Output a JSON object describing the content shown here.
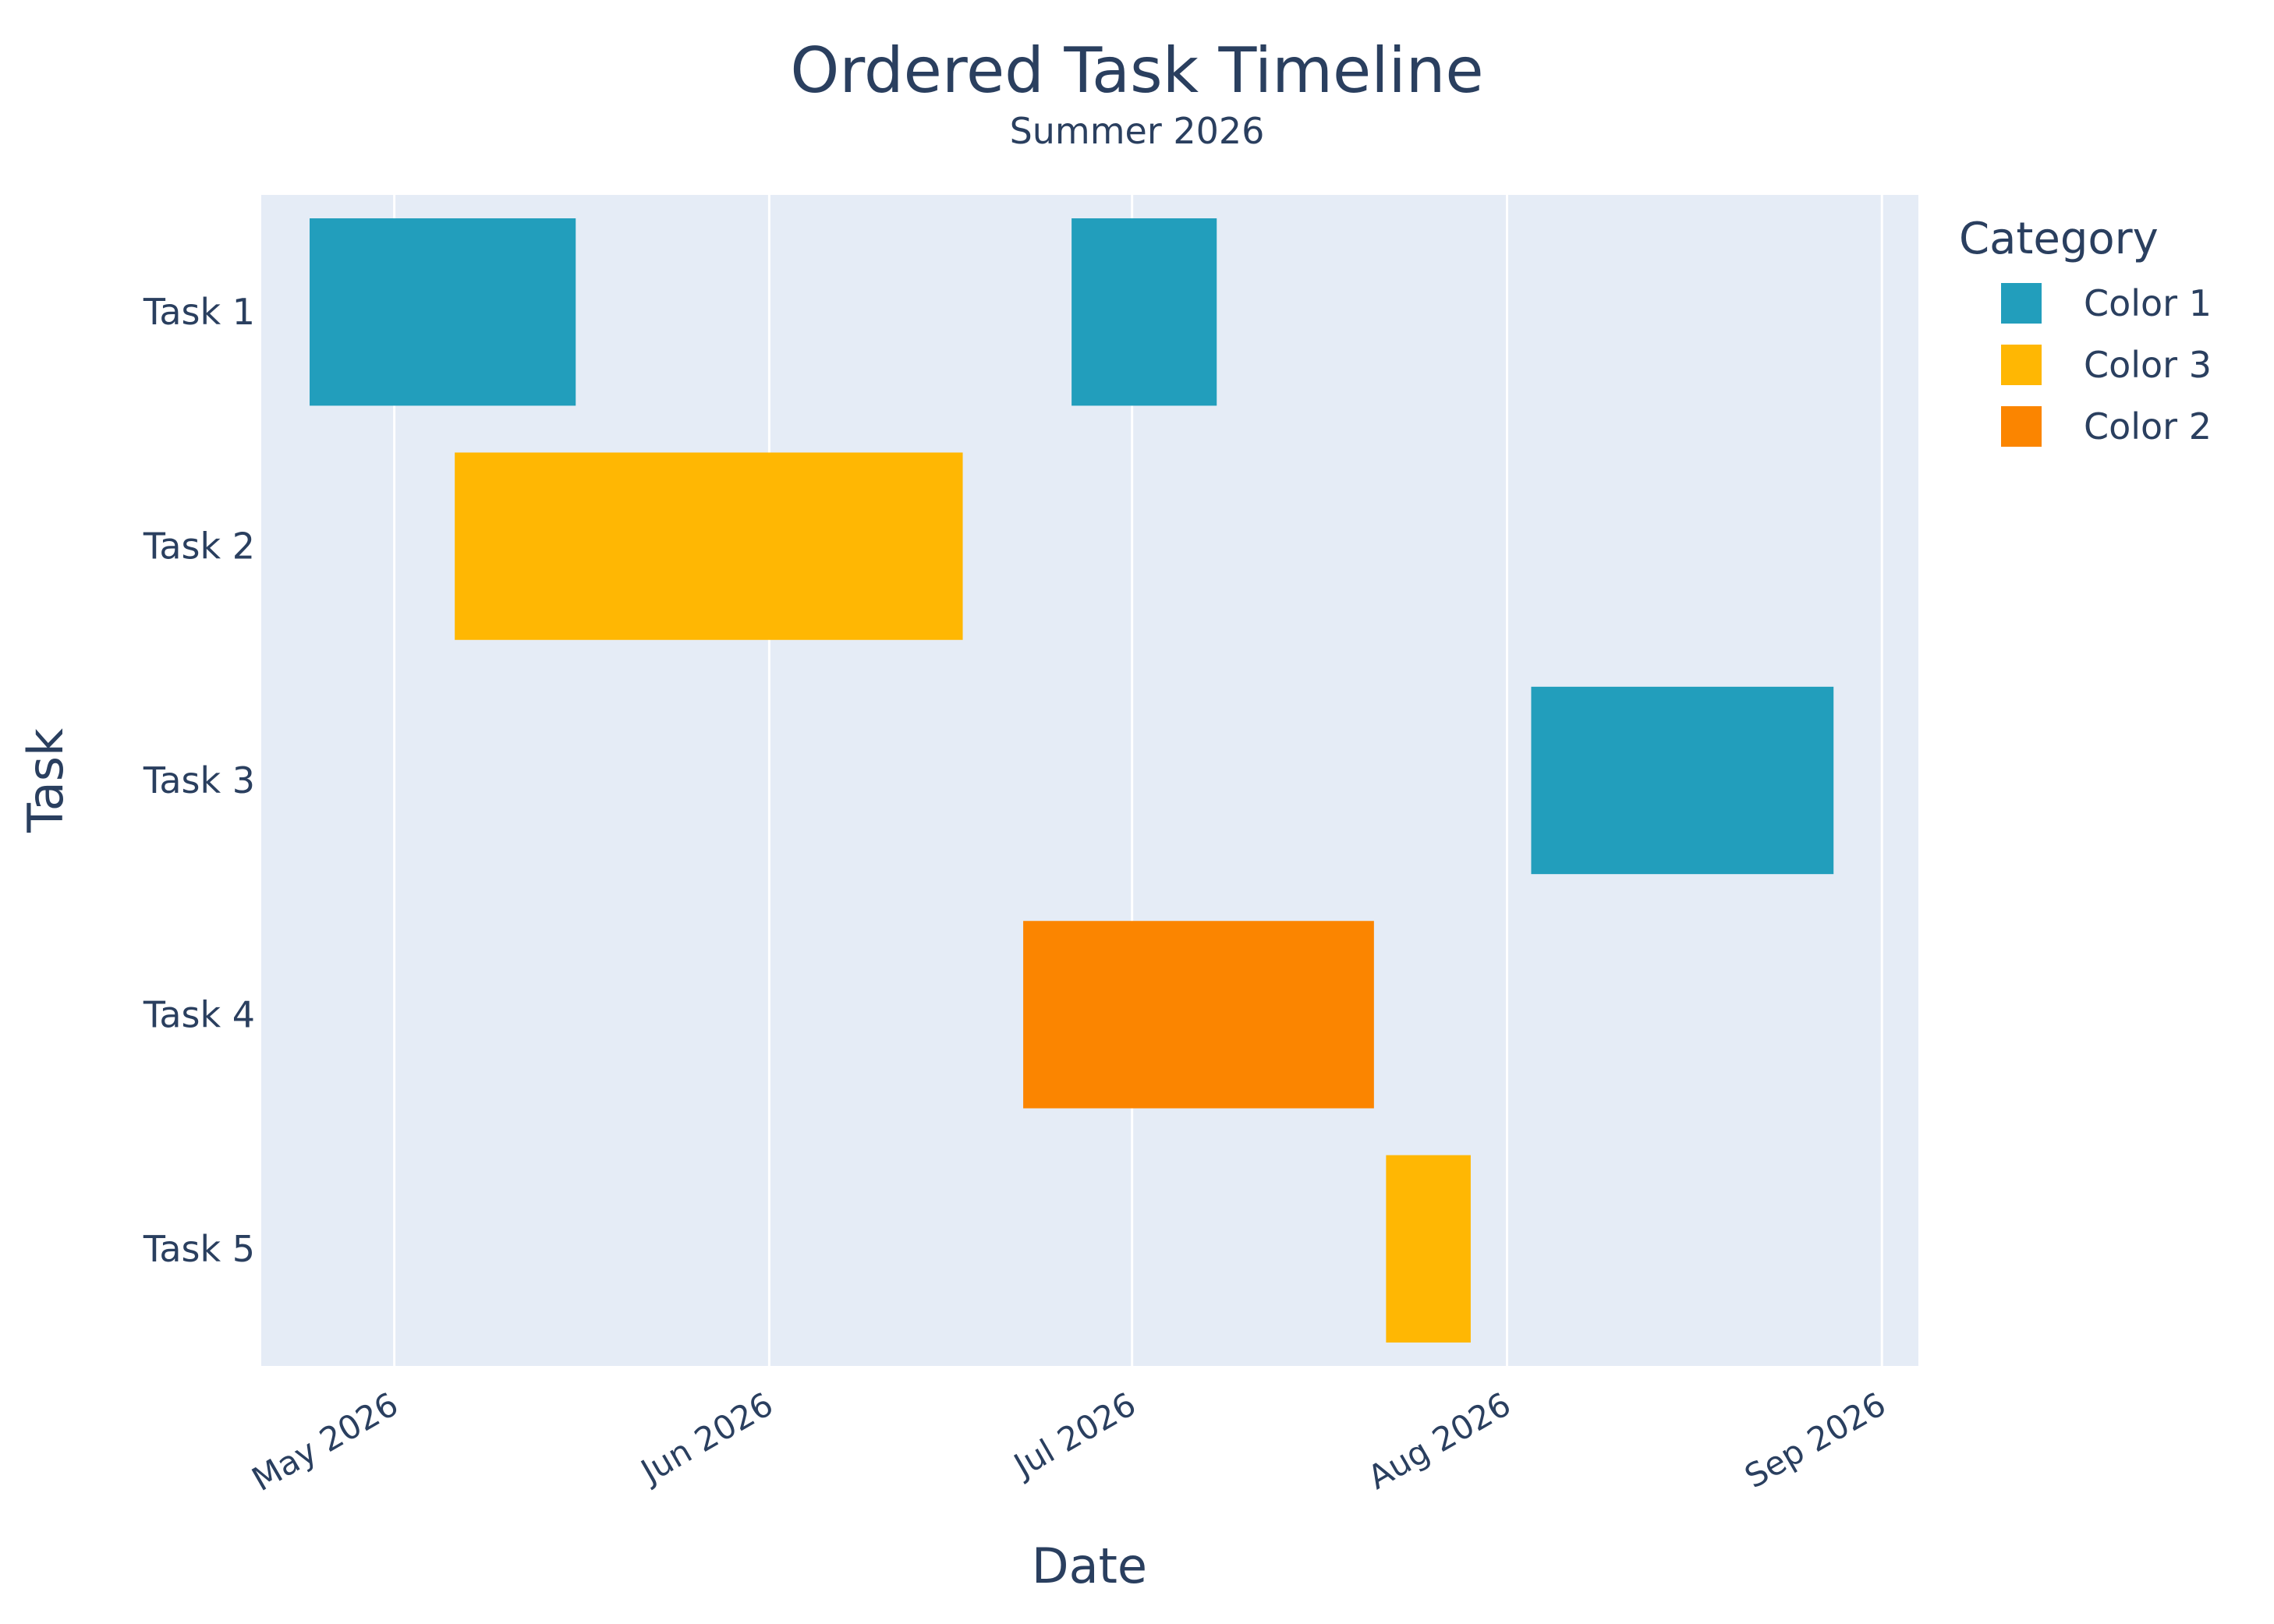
{
  "chart_data": {
    "type": "gantt",
    "title": "Ordered Task Timeline",
    "subtitle": "Summer 2026",
    "xlabel": "Date",
    "ylabel": "Task",
    "x_type": "date",
    "xlim": [
      "2026-04-20",
      "2026-09-01"
    ],
    "x_ticks": [
      "2026-05-01",
      "2026-06-01",
      "2026-07-01",
      "2026-08-01",
      "2026-09-01"
    ],
    "x_tick_labels": [
      "May 2026",
      "Jun 2026",
      "Jul 2026",
      "Aug 2026",
      "Sep 2026"
    ],
    "categories": [
      "Task 1",
      "Task 2",
      "Task 3",
      "Task 4",
      "Task 5"
    ],
    "legend": {
      "title": "Category",
      "position": "top-right",
      "entries": [
        {
          "name": "Color 1",
          "color": "#229EBC"
        },
        {
          "name": "Color 3",
          "color": "#FFB703"
        },
        {
          "name": "Color 2",
          "color": "#FB8500"
        }
      ]
    },
    "tasks": [
      {
        "task": "Task 1",
        "start": "2026-04-24",
        "finish": "2026-05-16",
        "category": "Color 1"
      },
      {
        "task": "Task 1",
        "start": "2026-06-26",
        "finish": "2026-07-08",
        "category": "Color 1"
      },
      {
        "task": "Task 2",
        "start": "2026-05-06",
        "finish": "2026-06-17",
        "category": "Color 3"
      },
      {
        "task": "Task 3",
        "start": "2026-08-03",
        "finish": "2026-08-28",
        "category": "Color 1"
      },
      {
        "task": "Task 4",
        "start": "2026-06-22",
        "finish": "2026-07-21",
        "category": "Color 2"
      },
      {
        "task": "Task 5",
        "start": "2026-07-22",
        "finish": "2026-07-29",
        "category": "Color 3"
      }
    ],
    "grid": true,
    "colors": {
      "plot_bg": "#E5ECF6",
      "grid": "#FFFFFF",
      "text": "#2A3F5F"
    }
  }
}
